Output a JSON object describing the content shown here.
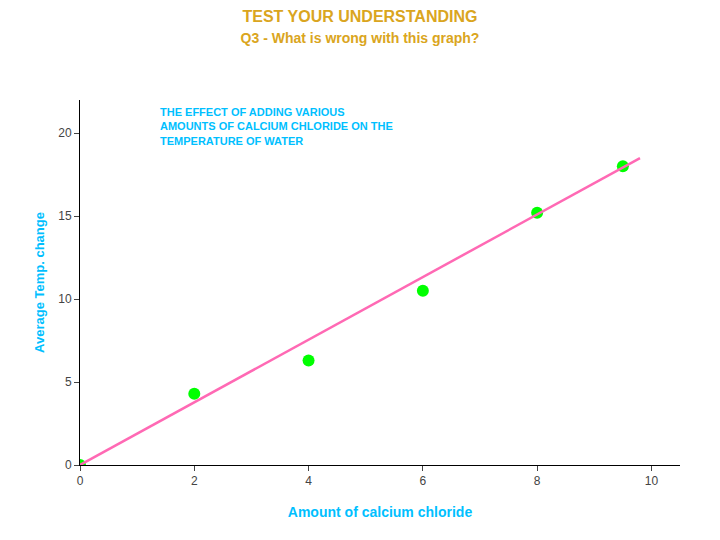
{
  "chart_data": {
    "type": "scatter",
    "title": "TEST YOUR UNDERSTANDING",
    "subtitle": "Q3 - What is wrong with this graph?",
    "annotations": [
      "THE EFFECT OF ADDING VARIOUS\nAMOUNTS OF CALCIUM CHLORIDE ON THE\nTEMPERATURE OF WATER"
    ],
    "xlabel": "Amount of calcium chloride",
    "ylabel": "Average Temp. change",
    "series": [
      {
        "type": "scatter",
        "x": [
          0,
          2,
          4,
          6,
          8,
          9.5
        ],
        "values": [
          0,
          4.3,
          6.3,
          10.5,
          15.2,
          18.0
        ],
        "color": "#00FF00",
        "marker": "circle"
      },
      {
        "type": "line",
        "x": [
          0,
          9.8
        ],
        "values": [
          0,
          18.5
        ],
        "color": "#FF69B4",
        "line_style": "solid"
      }
    ],
    "xlim": [
      0,
      10.5
    ],
    "ylim": [
      0,
      22
    ],
    "xticks": [
      0,
      2,
      4,
      6,
      8,
      10
    ],
    "yticks": [
      0,
      5,
      10,
      15,
      20
    ],
    "grid": false
  }
}
